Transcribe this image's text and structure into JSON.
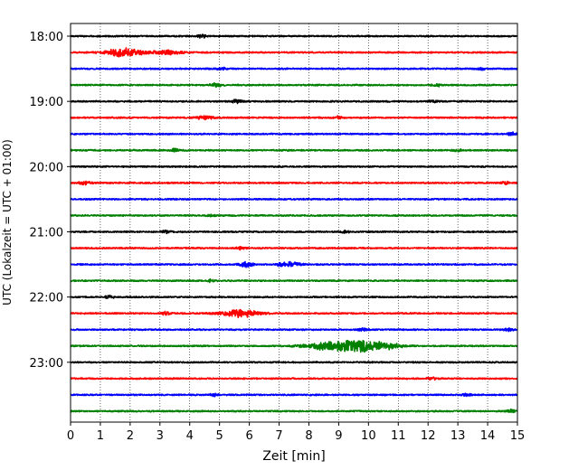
{
  "chart_data": {
    "type": "line",
    "xlabel": "Zeit  [min]",
    "ylabel": "UTC (Lokalzeit = UTC + 01:00)",
    "xlim": [
      0,
      15
    ],
    "x_ticks": [
      0,
      1,
      2,
      3,
      4,
      5,
      6,
      7,
      8,
      9,
      10,
      11,
      12,
      13,
      14,
      15
    ],
    "y_ticks": [
      "18:00",
      "19:00",
      "20:00",
      "21:00",
      "22:00",
      "23:00"
    ],
    "y_tick_rows": [
      0,
      4,
      8,
      12,
      16,
      20
    ],
    "rows_per_hour": 4,
    "minutes_per_row": 15,
    "grid": "vertical dotted",
    "series": [
      {
        "start": "18:00",
        "color": "#000000",
        "amplitude": 0.16,
        "events": [
          {
            "t": 4.4,
            "amp": 0.35,
            "dur": 0.3
          }
        ]
      },
      {
        "start": "18:15",
        "color": "#ff0000",
        "amplitude": 0.16,
        "events": [
          {
            "t": 1.8,
            "amp": 0.85,
            "dur": 1.2
          },
          {
            "t": 3.2,
            "amp": 0.4,
            "dur": 1.0
          }
        ]
      },
      {
        "start": "18:30",
        "color": "#0000ff",
        "amplitude": 0.16,
        "events": [
          {
            "t": 5.1,
            "amp": 0.35,
            "dur": 0.3
          },
          {
            "t": 13.8,
            "amp": 0.3,
            "dur": 0.3
          }
        ]
      },
      {
        "start": "18:45",
        "color": "#008000",
        "amplitude": 0.16,
        "events": [
          {
            "t": 4.9,
            "amp": 0.35,
            "dur": 0.4
          },
          {
            "t": 12.3,
            "amp": 0.3,
            "dur": 0.3
          }
        ]
      },
      {
        "start": "19:00",
        "color": "#000000",
        "amplitude": 0.16,
        "events": [
          {
            "t": 5.6,
            "amp": 0.3,
            "dur": 0.4
          },
          {
            "t": 12.2,
            "amp": 0.25,
            "dur": 0.3
          }
        ]
      },
      {
        "start": "19:15",
        "color": "#ff0000",
        "amplitude": 0.16,
        "events": [
          {
            "t": 4.5,
            "amp": 0.45,
            "dur": 0.5
          },
          {
            "t": 9.0,
            "amp": 0.3,
            "dur": 0.2
          }
        ]
      },
      {
        "start": "19:30",
        "color": "#0000ff",
        "amplitude": 0.16,
        "events": [
          {
            "t": 14.8,
            "amp": 0.3,
            "dur": 0.3
          }
        ]
      },
      {
        "start": "19:45",
        "color": "#008000",
        "amplitude": 0.16,
        "events": [
          {
            "t": 3.5,
            "amp": 0.3,
            "dur": 0.3
          },
          {
            "t": 13.0,
            "amp": 0.25,
            "dur": 0.3
          }
        ]
      },
      {
        "start": "20:00",
        "color": "#000000",
        "amplitude": 0.16,
        "events": []
      },
      {
        "start": "20:15",
        "color": "#ff0000",
        "amplitude": 0.16,
        "events": [
          {
            "t": 0.5,
            "amp": 0.3,
            "dur": 0.4
          },
          {
            "t": 14.6,
            "amp": 0.3,
            "dur": 0.3
          }
        ]
      },
      {
        "start": "20:30",
        "color": "#0000ff",
        "amplitude": 0.16,
        "events": []
      },
      {
        "start": "20:45",
        "color": "#008000",
        "amplitude": 0.16,
        "events": [
          {
            "t": 4.7,
            "amp": 0.25,
            "dur": 0.3
          }
        ]
      },
      {
        "start": "21:00",
        "color": "#000000",
        "amplitude": 0.16,
        "events": [
          {
            "t": 3.2,
            "amp": 0.3,
            "dur": 0.3
          },
          {
            "t": 9.2,
            "amp": 0.3,
            "dur": 0.3
          }
        ]
      },
      {
        "start": "21:15",
        "color": "#ff0000",
        "amplitude": 0.16,
        "events": [
          {
            "t": 5.7,
            "amp": 0.25,
            "dur": 0.3
          }
        ]
      },
      {
        "start": "21:30",
        "color": "#0000ff",
        "amplitude": 0.16,
        "events": [
          {
            "t": 5.9,
            "amp": 0.45,
            "dur": 0.5
          },
          {
            "t": 7.3,
            "amp": 0.45,
            "dur": 0.8
          }
        ]
      },
      {
        "start": "21:45",
        "color": "#008000",
        "amplitude": 0.16,
        "events": [
          {
            "t": 4.7,
            "amp": 0.25,
            "dur": 0.3
          }
        ]
      },
      {
        "start": "22:00",
        "color": "#000000",
        "amplitude": 0.16,
        "events": [
          {
            "t": 1.3,
            "amp": 0.25,
            "dur": 0.3
          }
        ]
      },
      {
        "start": "22:15",
        "color": "#ff0000",
        "amplitude": 0.16,
        "events": [
          {
            "t": 3.2,
            "amp": 0.4,
            "dur": 0.3
          },
          {
            "t": 5.7,
            "amp": 0.75,
            "dur": 1.3
          }
        ]
      },
      {
        "start": "22:30",
        "color": "#0000ff",
        "amplitude": 0.16,
        "events": [
          {
            "t": 9.8,
            "amp": 0.3,
            "dur": 0.3
          },
          {
            "t": 14.7,
            "amp": 0.3,
            "dur": 0.3
          }
        ]
      },
      {
        "start": "22:45",
        "color": "#008000",
        "amplitude": 0.16,
        "events": [
          {
            "t": 8.4,
            "amp": 0.6,
            "dur": 1.3
          },
          {
            "t": 9.6,
            "amp": 1.4,
            "dur": 1.5
          },
          {
            "t": 10.6,
            "amp": 0.5,
            "dur": 1.0
          }
        ]
      },
      {
        "start": "23:00",
        "color": "#000000",
        "amplitude": 0.16,
        "events": []
      },
      {
        "start": "23:15",
        "color": "#ff0000",
        "amplitude": 0.16,
        "events": [
          {
            "t": 12.1,
            "amp": 0.3,
            "dur": 0.3
          }
        ]
      },
      {
        "start": "23:30",
        "color": "#0000ff",
        "amplitude": 0.16,
        "events": [
          {
            "t": 4.8,
            "amp": 0.25,
            "dur": 0.3
          },
          {
            "t": 13.3,
            "amp": 0.25,
            "dur": 0.3
          }
        ]
      },
      {
        "start": "23:45",
        "color": "#008000",
        "amplitude": 0.16,
        "events": [
          {
            "t": 14.8,
            "amp": 0.3,
            "dur": 0.3
          }
        ]
      }
    ]
  }
}
